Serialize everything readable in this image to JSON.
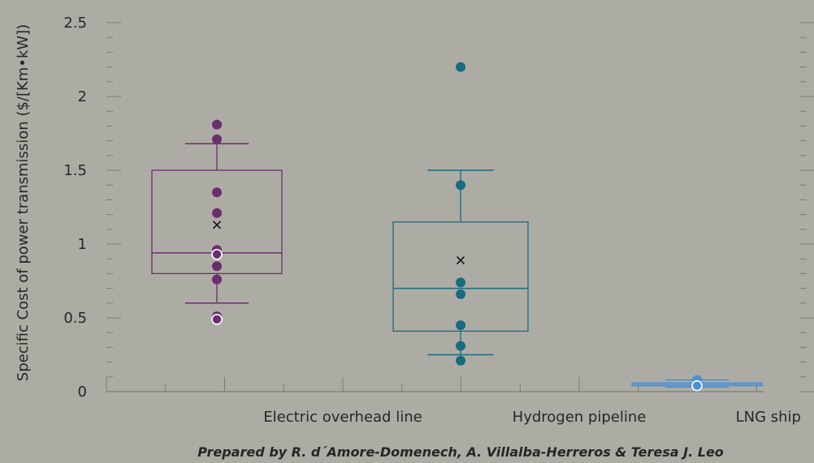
{
  "chart_data": {
    "type": "box",
    "ylabel": "Specific Cost of power transmission ($/[Km•kW])",
    "ylim": [
      0,
      2.5
    ],
    "y_ticks": [
      "0",
      "0.5",
      "1",
      "1.5",
      "2",
      "2.5"
    ],
    "credit": "Prepared by R. d´Amore-Domenech, A. Villalba-Herreros & Teresa J. Leo",
    "categories": [
      "",
      "Electric overhead line",
      "Hydrogen pipeline",
      "LNG ship"
    ],
    "grid": false,
    "legend": "none",
    "series": [
      {
        "key": "electric",
        "color": "#6a2e6d",
        "points": [
          1.81,
          1.71,
          1.21,
          1.35,
          0.96,
          0.93,
          0.85,
          0.76,
          0.51,
          0.49
        ],
        "whisker_low": 0.6,
        "q1": 0.8,
        "median": 0.94,
        "q3": 1.5,
        "whisker_high": 1.68,
        "mean": 1.13,
        "mean_marker": "x"
      },
      {
        "key": "hydrogen",
        "color": "#1a6a80",
        "points": [
          2.2,
          1.4,
          0.74,
          0.66,
          0.45,
          0.31,
          0.21
        ],
        "whisker_low": 0.25,
        "q1": 0.41,
        "median": 0.7,
        "q3": 1.15,
        "whisker_high": 1.5,
        "mean": 0.89,
        "mean_marker": "x"
      },
      {
        "key": "lng",
        "color": "#4a90d6",
        "points": [
          0.08,
          0.04
        ],
        "whisker_low": 0.03,
        "q1": 0.04,
        "median": 0.05,
        "q3": 0.06,
        "whisker_high": 0.08,
        "mean": 0.05,
        "mean_marker": "x"
      }
    ]
  }
}
